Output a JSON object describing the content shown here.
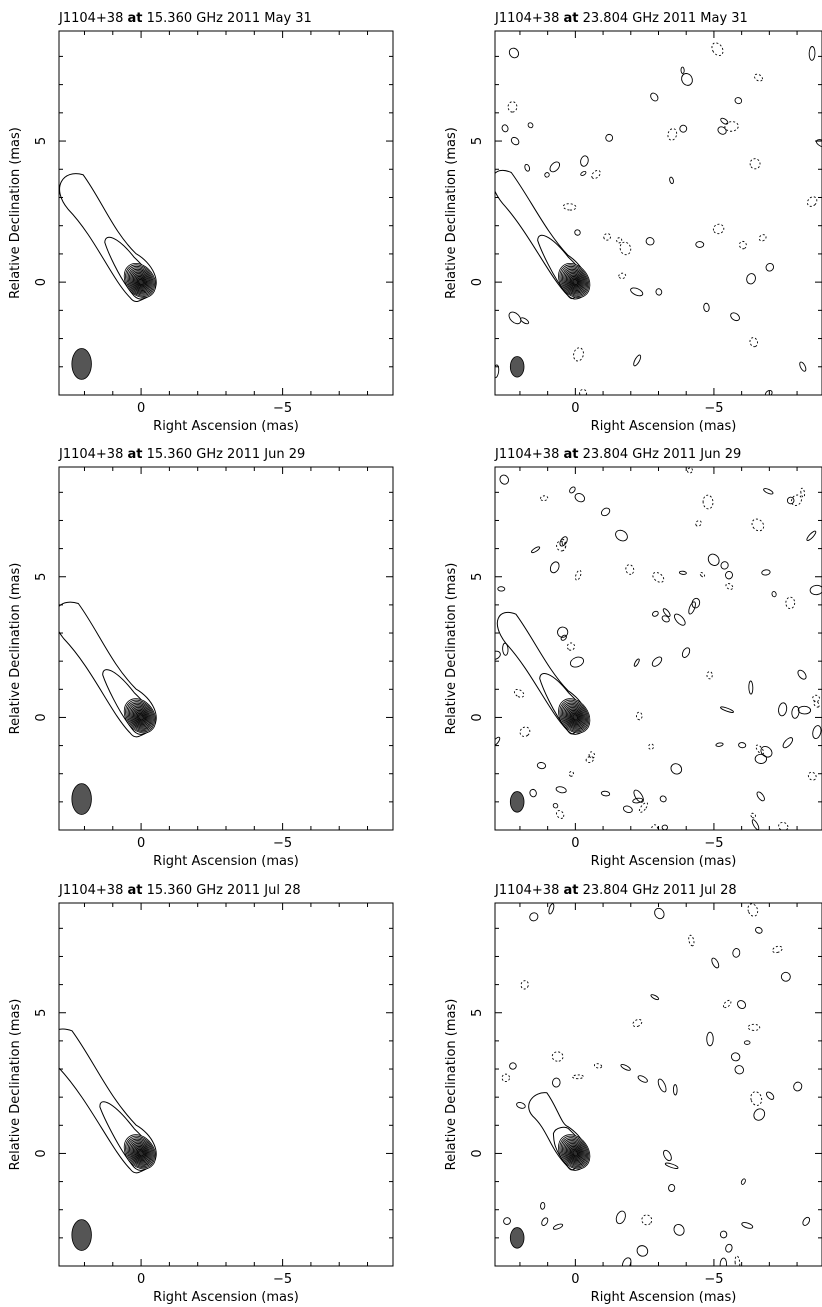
{
  "chart_data": [
    {
      "type": "contour",
      "source": "J1104+38",
      "at": "at",
      "freq_label": "15.360 GHz",
      "date": "2011 May 31",
      "xlabel": "Right Ascension  (mas)",
      "ylabel": "Relative Declination  (mas)",
      "xlim": [
        2.9,
        -8.9
      ],
      "ylim": [
        -4.0,
        8.9
      ],
      "xticks": [
        {
          "v": 0,
          "t": "0"
        },
        {
          "v": -5,
          "t": "−5"
        }
      ],
      "yticks": [
        {
          "v": 0,
          "t": "0"
        },
        {
          "v": 5,
          "t": "5"
        }
      ],
      "beam": {
        "x": 2.1,
        "y": -2.9,
        "major": 0.95,
        "minor": 0.55,
        "pa": 0
      },
      "core": {
        "x": 0,
        "y": 0
      },
      "jet_pa_deg": -36,
      "extent_mas": 4.5
    },
    {
      "type": "contour",
      "source": "J1104+38",
      "at": "at",
      "freq_label": "23.804 GHz",
      "date": "2011 May 31",
      "xlabel": "Right Ascension  (mas)",
      "ylabel": "Relative Declination  (mas)",
      "xlim": [
        2.9,
        -8.9
      ],
      "ylim": [
        -4.0,
        8.9
      ],
      "xticks": [
        {
          "v": 0,
          "t": "0"
        },
        {
          "v": -5,
          "t": "−5"
        }
      ],
      "yticks": [
        {
          "v": 0,
          "t": "0"
        },
        {
          "v": 5,
          "t": "5"
        }
      ],
      "beam": {
        "x": 2.1,
        "y": -3.0,
        "major": 0.6,
        "minor": 0.35,
        "pa": 0
      },
      "core": {
        "x": 0,
        "y": 0
      },
      "jet_pa_deg": -36,
      "extent_mas": 4.8
    },
    {
      "type": "contour",
      "source": "J1104+38",
      "at": "at",
      "freq_label": "15.360 GHz",
      "date": "2011 Jun 29",
      "xlabel": "Right Ascension  (mas)",
      "ylabel": "Relative Declination  (mas)",
      "xlim": [
        2.9,
        -8.9
      ],
      "ylim": [
        -4.0,
        8.9
      ],
      "xticks": [
        {
          "v": 0,
          "t": "0"
        },
        {
          "v": -5,
          "t": "−5"
        }
      ],
      "yticks": [
        {
          "v": 0,
          "t": "0"
        },
        {
          "v": 5,
          "t": "5"
        }
      ],
      "beam": {
        "x": 2.1,
        "y": -2.9,
        "major": 0.95,
        "minor": 0.55,
        "pa": 0
      },
      "core": {
        "x": 0,
        "y": 0
      },
      "jet_pa_deg": -36,
      "extent_mas": 4.8
    },
    {
      "type": "contour",
      "source": "J1104+38",
      "at": "at",
      "freq_label": "23.804 GHz",
      "date": "2011 Jun 29",
      "xlabel": "Right Ascension  (mas)",
      "ylabel": "Relative Declination  (mas)",
      "xlim": [
        2.9,
        -8.9
      ],
      "ylim": [
        -4.0,
        8.9
      ],
      "xticks": [
        {
          "v": 0,
          "t": "0"
        },
        {
          "v": -5,
          "t": "−5"
        }
      ],
      "yticks": [
        {
          "v": 0,
          "t": "0"
        },
        {
          "v": 5,
          "t": "5"
        }
      ],
      "beam": {
        "x": 2.1,
        "y": -3.0,
        "major": 0.6,
        "minor": 0.35,
        "pa": 0
      },
      "core": {
        "x": 0,
        "y": 0
      },
      "jet_pa_deg": -36,
      "extent_mas": 4.5
    },
    {
      "type": "contour",
      "source": "J1104+38",
      "at": "at",
      "freq_label": "15.360 GHz",
      "date": "2011 Jul 28",
      "xlabel": "Right Ascension  (mas)",
      "ylabel": "Relative Declination  (mas)",
      "xlim": [
        2.9,
        -8.9
      ],
      "ylim": [
        -4.0,
        8.9
      ],
      "xticks": [
        {
          "v": 0,
          "t": "0"
        },
        {
          "v": -5,
          "t": "−5"
        }
      ],
      "yticks": [
        {
          "v": 0,
          "t": "0"
        },
        {
          "v": 5,
          "t": "5"
        }
      ],
      "beam": {
        "x": 2.1,
        "y": -2.9,
        "major": 0.95,
        "minor": 0.55,
        "pa": 0
      },
      "core": {
        "x": 0,
        "y": 0
      },
      "jet_pa_deg": -36,
      "extent_mas": 5.2
    },
    {
      "type": "contour",
      "source": "J1104+38",
      "at": "at",
      "freq_label": "23.804 GHz",
      "date": "2011 Jul 28",
      "xlabel": "Right Ascension  (mas)",
      "ylabel": "Relative Declination  (mas)",
      "xlim": [
        2.9,
        -8.9
      ],
      "ylim": [
        -4.0,
        8.9
      ],
      "xticks": [
        {
          "v": 0,
          "t": "0"
        },
        {
          "v": -5,
          "t": "−5"
        }
      ],
      "yticks": [
        {
          "v": 0,
          "t": "0"
        },
        {
          "v": 5,
          "t": "5"
        }
      ],
      "beam": {
        "x": 2.1,
        "y": -3.0,
        "major": 0.6,
        "minor": 0.35,
        "pa": 0
      },
      "core": {
        "x": 0,
        "y": 0
      },
      "jet_pa_deg": -36,
      "extent_mas": 2.5
    }
  ]
}
